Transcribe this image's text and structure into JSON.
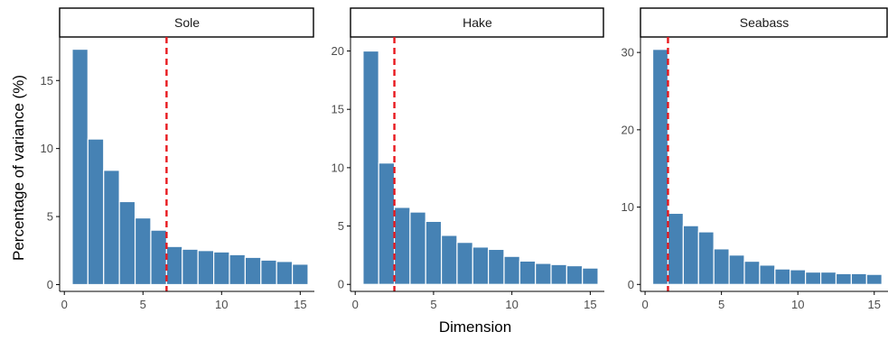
{
  "xlabel": "Dimension",
  "ylabel": "Percentage of variance (%)",
  "colors": {
    "bar": "#4682b4",
    "cutoff": "#e8191f",
    "strip_fill": "#ffffff",
    "strip_border": "#000000",
    "axis": "#000000"
  },
  "chart_data": [
    {
      "type": "bar",
      "title": "Sole",
      "x": [
        1,
        2,
        3,
        4,
        5,
        6,
        7,
        8,
        9,
        10,
        11,
        12,
        13,
        14,
        15
      ],
      "values": [
        17.3,
        10.7,
        8.4,
        6.1,
        4.9,
        4.0,
        2.8,
        2.6,
        2.5,
        2.4,
        2.2,
        2.0,
        1.8,
        1.7,
        1.5
      ],
      "cutoff": 6.5,
      "xlim": [
        -0.3,
        15.9
      ],
      "ylim": [
        -0.5,
        18.2
      ],
      "xticks": [
        0,
        5,
        10,
        15
      ],
      "yticks": [
        0,
        5,
        10,
        15
      ]
    },
    {
      "type": "bar",
      "title": "Hake",
      "x": [
        1,
        2,
        3,
        4,
        5,
        6,
        7,
        8,
        9,
        10,
        11,
        12,
        13,
        14,
        15
      ],
      "values": [
        20.0,
        10.4,
        6.6,
        6.2,
        5.4,
        4.2,
        3.6,
        3.2,
        3.0,
        2.4,
        2.0,
        1.8,
        1.7,
        1.6,
        1.4
      ],
      "cutoff": 2.5,
      "xlim": [
        -0.3,
        15.9
      ],
      "ylim": [
        -0.6,
        21.2
      ],
      "xticks": [
        0,
        5,
        10,
        15
      ],
      "yticks": [
        0,
        5,
        10,
        15,
        20
      ]
    },
    {
      "type": "bar",
      "title": "Seabass",
      "x": [
        1,
        2,
        3,
        4,
        5,
        6,
        7,
        8,
        9,
        10,
        11,
        12,
        13,
        14,
        15
      ],
      "values": [
        30.4,
        9.2,
        7.6,
        6.8,
        4.6,
        3.8,
        3.0,
        2.5,
        2.0,
        1.9,
        1.6,
        1.6,
        1.4,
        1.4,
        1.3
      ],
      "cutoff": 1.5,
      "xlim": [
        -0.3,
        15.9
      ],
      "ylim": [
        -0.9,
        32.0
      ],
      "xticks": [
        0,
        5,
        10,
        15
      ],
      "yticks": [
        0,
        10,
        20,
        30
      ]
    }
  ]
}
